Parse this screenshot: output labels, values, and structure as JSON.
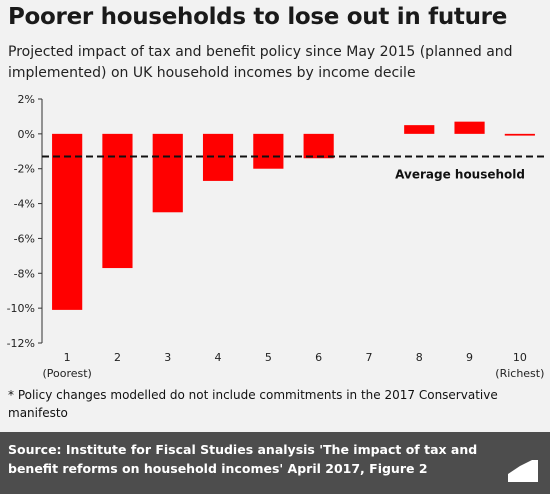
{
  "header": {
    "title": "Poorer households to lose out in future",
    "subtitle": "Projected impact of tax and benefit policy since May 2015 (planned and implemented) on UK household incomes by income decile"
  },
  "footnote": "* Policy changes modelled do not include commitments in the 2017 Conservative manifesto",
  "footer": {
    "source": "Source: Institute for Fiscal Studies analysis 'The impact of tax and benefit reforms on household incomes' April 2017, Figure 2",
    "logo_text": "Full Fact"
  },
  "colors": {
    "bar": "#ff0000",
    "background": "#f2f2f2",
    "footer": "#4d4d4d"
  },
  "chart_data": {
    "type": "bar",
    "categories": [
      "1",
      "2",
      "3",
      "4",
      "5",
      "6",
      "7",
      "8",
      "9",
      "10"
    ],
    "category_sublabels": [
      "(Poorest)",
      "",
      "",
      "",
      "",
      "",
      "",
      "",
      "",
      "(Richest)"
    ],
    "values": [
      -10.1,
      -7.7,
      -4.5,
      -2.7,
      -2.0,
      -1.4,
      0.0,
      0.5,
      0.7,
      -0.1
    ],
    "ylim": [
      -12,
      2
    ],
    "yticks": [
      2,
      0,
      -2,
      -4,
      -6,
      -8,
      -10,
      -12
    ],
    "ytick_labels": [
      "2%",
      "0%",
      "-2%",
      "-4%",
      "-6%",
      "-8%",
      "-10%",
      "-12%"
    ],
    "reference_line": {
      "value": -1.3,
      "label": "Average household",
      "style": "dashed"
    },
    "xlabel": "",
    "ylabel": "",
    "grid": false
  }
}
